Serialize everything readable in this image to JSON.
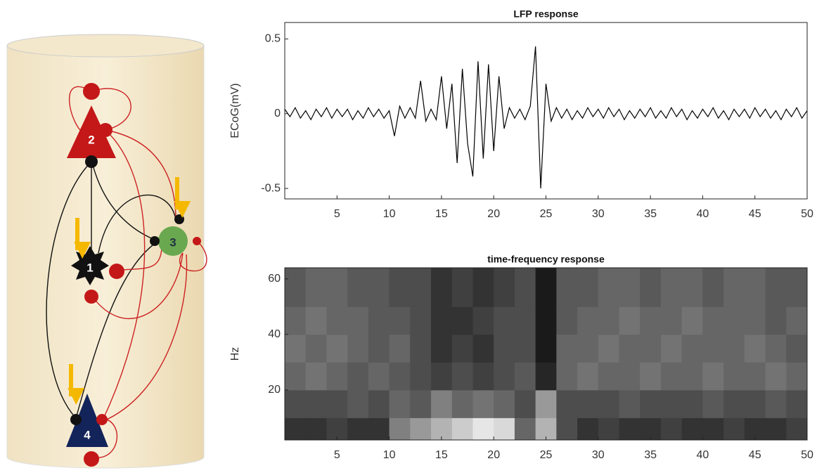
{
  "diagram": {
    "nodes": [
      {
        "label": "1"
      },
      {
        "label": "2"
      },
      {
        "label": "3"
      },
      {
        "label": "4"
      }
    ]
  },
  "chart_data": [
    {
      "type": "line",
      "title": "LFP response",
      "y_label": "ECoG(mV)",
      "color": "#000000",
      "x": [
        0,
        0.5,
        1,
        1.5,
        2,
        2.5,
        3,
        3.5,
        4,
        4.5,
        5,
        5.5,
        6,
        6.5,
        7,
        7.5,
        8,
        8.5,
        9,
        9.5,
        10,
        10.5,
        11,
        11.5,
        12,
        12.5,
        13,
        13.5,
        14,
        14.5,
        15,
        15.5,
        16,
        16.5,
        17,
        17.5,
        18,
        18.5,
        19,
        19.5,
        20,
        20.5,
        21,
        21.5,
        22,
        22.5,
        23,
        23.5,
        24,
        24.5,
        25,
        25.5,
        26,
        26.5,
        27,
        27.5,
        28,
        28.5,
        29,
        29.5,
        30,
        30.5,
        31,
        31.5,
        32,
        32.5,
        33,
        33.5,
        34,
        34.5,
        35,
        35.5,
        36,
        36.5,
        37,
        37.5,
        38,
        38.5,
        39,
        39.5,
        40,
        40.5,
        41,
        41.5,
        42,
        42.5,
        43,
        43.5,
        44,
        44.5,
        45,
        45.5,
        46,
        46.5,
        47,
        47.5,
        48,
        48.5,
        49,
        49.5,
        50
      ],
      "values": [
        0.03,
        -0.02,
        0.04,
        -0.03,
        0.02,
        -0.04,
        0.03,
        -0.02,
        0.04,
        -0.03,
        0.03,
        -0.02,
        0.03,
        -0.04,
        0.02,
        -0.03,
        0.04,
        -0.02,
        0.03,
        -0.03,
        0.02,
        -0.15,
        0.05,
        -0.03,
        0.04,
        -0.03,
        0.22,
        -0.05,
        0.03,
        -0.04,
        0.25,
        -0.1,
        0.2,
        -0.33,
        0.3,
        -0.2,
        -0.42,
        0.35,
        -0.3,
        0.33,
        -0.25,
        0.25,
        -0.1,
        0.04,
        -0.03,
        0.03,
        -0.04,
        0.05,
        0.45,
        -0.5,
        0.2,
        -0.05,
        0.04,
        -0.03,
        0.03,
        -0.04,
        0.02,
        -0.03,
        0.04,
        -0.02,
        0.03,
        -0.03,
        0.04,
        -0.02,
        0.03,
        -0.04,
        0.02,
        -0.03,
        0.03,
        -0.02,
        0.04,
        -0.03,
        0.02,
        -0.03,
        0.04,
        -0.02,
        0.03,
        -0.04,
        0.02,
        -0.03,
        0.03,
        -0.02,
        0.04,
        -0.03,
        0.02,
        -0.04,
        0.03,
        -0.02,
        0.03,
        -0.03,
        0.04,
        -0.02,
        0.03,
        -0.03,
        0.02,
        -0.04,
        0.03,
        -0.02,
        0.04,
        -0.03,
        0.02
      ],
      "xlim": [
        0,
        50
      ],
      "xticks": [
        5,
        10,
        15,
        20,
        25,
        30,
        35,
        40,
        45,
        50
      ],
      "ylim": [
        -0.57,
        0.61
      ],
      "yticks": [
        -0.5,
        0,
        0.5
      ]
    },
    {
      "type": "heatmap",
      "title": "time-frequency response",
      "y_label": "Hz",
      "colormap": "gray",
      "xbins": [
        0,
        2,
        4,
        6,
        8,
        10,
        12,
        14,
        16,
        18,
        20,
        22,
        24,
        26,
        28,
        30,
        32,
        34,
        36,
        38,
        40,
        42,
        44,
        46,
        48,
        50
      ],
      "ybins": [
        2,
        10,
        20,
        30,
        40,
        50,
        64
      ],
      "values": [
        [
          0.2,
          0.2,
          0.25,
          0.2,
          0.2,
          0.5,
          0.6,
          0.7,
          0.8,
          0.9,
          0.85,
          0.4,
          0.7,
          0.3,
          0.2,
          0.25,
          0.2,
          0.2,
          0.25,
          0.2,
          0.2,
          0.25,
          0.2,
          0.2,
          0.25
        ],
        [
          0.3,
          0.3,
          0.3,
          0.35,
          0.3,
          0.4,
          0.35,
          0.5,
          0.4,
          0.45,
          0.4,
          0.3,
          0.6,
          0.3,
          0.3,
          0.3,
          0.35,
          0.3,
          0.3,
          0.3,
          0.35,
          0.3,
          0.3,
          0.35,
          0.3
        ],
        [
          0.4,
          0.45,
          0.4,
          0.35,
          0.4,
          0.35,
          0.3,
          0.25,
          0.3,
          0.25,
          0.3,
          0.35,
          0.15,
          0.4,
          0.45,
          0.4,
          0.4,
          0.45,
          0.4,
          0.4,
          0.45,
          0.4,
          0.4,
          0.45,
          0.4
        ],
        [
          0.45,
          0.4,
          0.45,
          0.4,
          0.35,
          0.4,
          0.3,
          0.2,
          0.25,
          0.2,
          0.3,
          0.3,
          0.1,
          0.4,
          0.4,
          0.45,
          0.4,
          0.4,
          0.45,
          0.4,
          0.4,
          0.4,
          0.45,
          0.4,
          0.35
        ],
        [
          0.4,
          0.45,
          0.4,
          0.4,
          0.35,
          0.35,
          0.3,
          0.2,
          0.2,
          0.25,
          0.3,
          0.3,
          0.1,
          0.35,
          0.4,
          0.4,
          0.45,
          0.4,
          0.4,
          0.45,
          0.4,
          0.4,
          0.4,
          0.35,
          0.4
        ],
        [
          0.35,
          0.4,
          0.4,
          0.35,
          0.35,
          0.3,
          0.3,
          0.2,
          0.25,
          0.2,
          0.25,
          0.3,
          0.1,
          0.35,
          0.35,
          0.4,
          0.4,
          0.35,
          0.4,
          0.4,
          0.35,
          0.4,
          0.4,
          0.35,
          0.35
        ]
      ],
      "xlim": [
        0,
        50
      ],
      "xticks": [
        5,
        10,
        15,
        20,
        25,
        30,
        35,
        40,
        45,
        50
      ],
      "ylim": [
        2,
        64
      ],
      "yticks": [
        20,
        40,
        60
      ]
    }
  ]
}
